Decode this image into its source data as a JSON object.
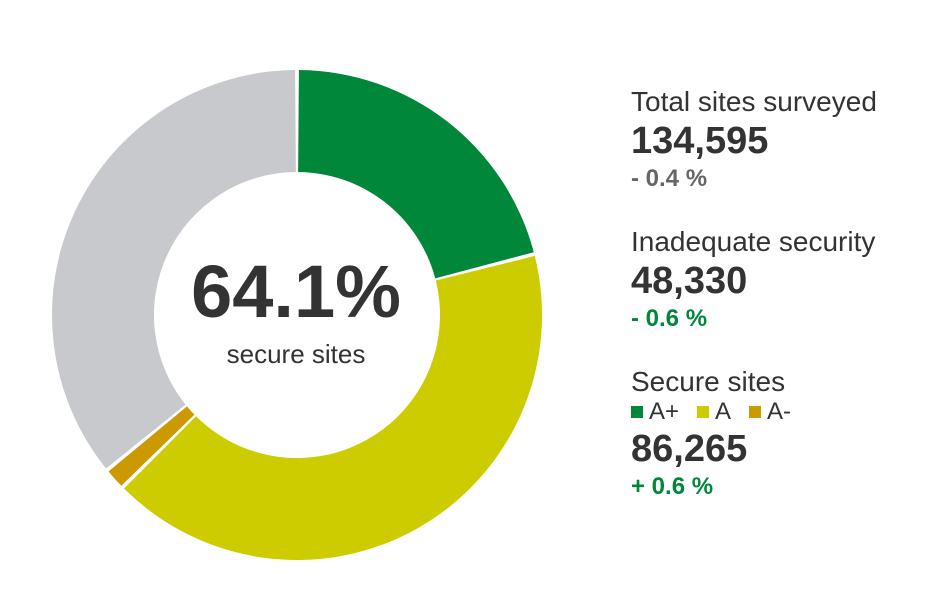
{
  "chart_data": {
    "type": "pie",
    "variant": "donut",
    "center_value": "64.1%",
    "center_label": "secure sites",
    "slices": [
      {
        "name": "A+",
        "percent": 21.0,
        "color": "#00873a"
      },
      {
        "name": "A",
        "percent": 41.6,
        "color": "#cccc00"
      },
      {
        "name": "A-",
        "percent": 1.5,
        "color": "#cc9900"
      },
      {
        "name": "",
        "percent": 35.9,
        "color": "#c8c9cc"
      }
    ]
  },
  "stats": {
    "total": {
      "label": "Total sites surveyed",
      "value": "134,595",
      "change": "- 0.4 %",
      "change_color": "#666666"
    },
    "inadequate": {
      "label": "Inadequate security",
      "value": "48,330",
      "change": "- 0.6 %",
      "change_color": "#00873a"
    },
    "secure": {
      "label": "Secure sites",
      "legend": [
        {
          "label": "A+",
          "color": "#00873a"
        },
        {
          "label": "A",
          "color": "#cccc00"
        },
        {
          "label": "A-",
          "color": "#cc9900"
        }
      ],
      "value": "86,265",
      "change": "+ 0.6 %",
      "change_color": "#00873a"
    }
  }
}
